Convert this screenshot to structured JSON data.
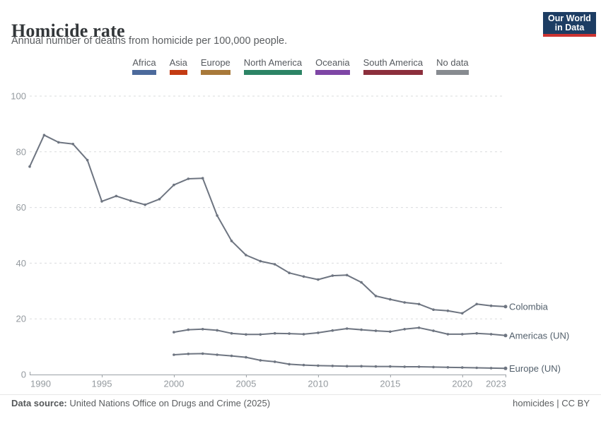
{
  "header": {
    "title": "Homicide rate",
    "subtitle": "Annual number of deaths from homicide per 100,000 people."
  },
  "logo": {
    "line1": "Our World",
    "line2": "in Data",
    "bg_color": "#1d3d63",
    "accent_color": "#cc3331"
  },
  "legend": {
    "items": [
      {
        "label": "Africa",
        "color": "#4C6A9C"
      },
      {
        "label": "Asia",
        "color": "#C43B13"
      },
      {
        "label": "Europe",
        "color": "#A8793A"
      },
      {
        "label": "North America",
        "color": "#2C8465"
      },
      {
        "label": "Oceania",
        "color": "#7E46A5"
      },
      {
        "label": "South America",
        "color": "#8C2F3C"
      },
      {
        "label": "No data",
        "color": "#878B90"
      }
    ]
  },
  "chart_data": {
    "type": "line",
    "title": "Homicide rate",
    "subtitle": "Annual number of deaths from homicide per 100,000 people.",
    "xlabel": "",
    "ylabel": "",
    "x_range": [
      1990,
      2023
    ],
    "x_ticks": [
      "1990",
      "1995",
      "2000",
      "2005",
      "2010",
      "2015",
      "2020",
      "2023"
    ],
    "y_ticks": [
      0,
      20,
      40,
      60,
      80,
      100
    ],
    "ylim": [
      0,
      100
    ],
    "grid": "horizontal-dashed",
    "legend_position": "labels-at-line-end",
    "line_color": "#6e7581",
    "label_color": "#525f6b",
    "series": [
      {
        "name": "Colombia",
        "start_year": 1990,
        "values": [
          74.7,
          86.0,
          83.4,
          82.8,
          77.0,
          62.2,
          64.1,
          62.4,
          61.0,
          63.0,
          68.1,
          70.3,
          70.5,
          57.1,
          48.0,
          42.9,
          40.7,
          39.6,
          36.5,
          35.2,
          34.1,
          35.5,
          35.7,
          33.1,
          28.2,
          27.0,
          25.9,
          25.3,
          23.3,
          22.9,
          22.0,
          25.3,
          24.7,
          24.4
        ]
      },
      {
        "name": "Americas (UN)",
        "start_year": 2000,
        "values": [
          15.2,
          16.1,
          16.3,
          15.9,
          14.8,
          14.4,
          14.4,
          14.8,
          14.7,
          14.5,
          15.0,
          15.8,
          16.5,
          16.1,
          15.7,
          15.4,
          16.3,
          16.8,
          15.7,
          14.5,
          14.5,
          14.8,
          14.5,
          14.0
        ]
      },
      {
        "name": "Europe (UN)",
        "start_year": 2000,
        "values": [
          7.1,
          7.4,
          7.5,
          7.1,
          6.7,
          6.2,
          5.1,
          4.6,
          3.7,
          3.4,
          3.2,
          3.1,
          3.0,
          3.0,
          2.9,
          2.9,
          2.8,
          2.8,
          2.7,
          2.6,
          2.5,
          2.4,
          2.3,
          2.2
        ]
      }
    ]
  },
  "footer": {
    "source_label": "Data source:",
    "source_text": " United Nations Office on Drugs and Crime (2025)",
    "right_text": "homicides | CC BY"
  }
}
